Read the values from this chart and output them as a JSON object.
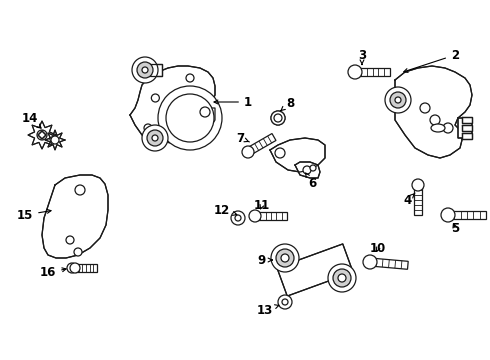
{
  "bg_color": "#ffffff",
  "line_color": "#1a1a1a",
  "text_color": "#000000",
  "font_size": 8.5,
  "lw": 0.9
}
